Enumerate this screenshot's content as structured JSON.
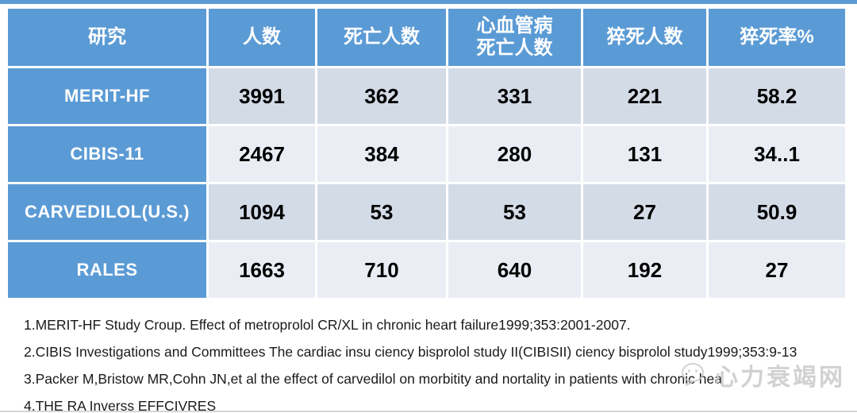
{
  "colors": {
    "accent_blue": "#5B9BD5",
    "band_dark": "#D3DBE7",
    "band_light": "#EAEEF4",
    "rate_red": "#FF0000"
  },
  "table": {
    "headers": [
      {
        "lines": [
          "研究"
        ]
      },
      {
        "lines": [
          "人数"
        ]
      },
      {
        "lines": [
          "死亡人数"
        ]
      },
      {
        "lines": [
          "心血管病",
          "死亡人数"
        ]
      },
      {
        "lines": [
          "猝死人数"
        ]
      },
      {
        "lines": [
          "猝死率%"
        ]
      }
    ],
    "rows": [
      {
        "values": [
          "MERIT-HF",
          "3991",
          "362",
          "331",
          "221",
          "58.2"
        ]
      },
      {
        "values": [
          "CIBIS-11",
          "2467",
          "384",
          "280",
          "131",
          "34..1"
        ]
      },
      {
        "values": [
          "CARVEDILOL(U.S.)",
          "1094",
          "53",
          "53",
          "27",
          "50.9"
        ]
      },
      {
        "values": [
          "RALES",
          "1663",
          "710",
          "640",
          "192",
          "27"
        ]
      }
    ]
  },
  "footnotes": [
    "1.MERIT-HF Study Croup. Effect of metroprolol CR/XL in chronic heart failure1999;353:2001-2007.",
    "2.CIBIS Investigations and Committees The cardiac insu ciency bisprolol study II(CIBISII) ciency bisprolol study1999;353:9-13",
    "3.Packer M,Bristow MR,Cohn JN,et al the effect of carvedilol on morbitity and nortality in patients with chronic hea",
    "4.THE RA Inverss EFFCIVRES"
  ],
  "watermark": {
    "text": "心力衰竭网"
  }
}
